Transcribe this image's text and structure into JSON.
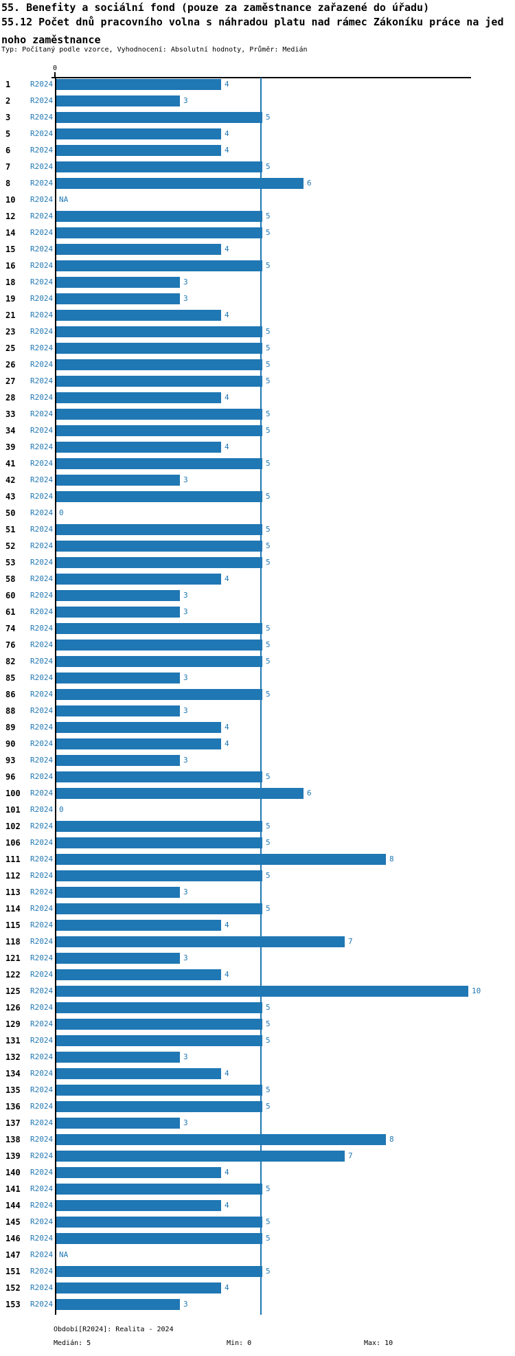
{
  "header": {
    "title_line1": "55. Benefity a sociální fond (pouze za zaměstnance zařazené do úřadu)",
    "title_line2": "55.12 Počet dnů pracovního volna s náhradou platu nad rámec Zákoníku práce na jed",
    "title_line3": "noho zaměstnance",
    "meta": "Typ: Počítaný podle vzorce, Vyhodnocení: Absolutní hodnoty, Průměr: Medián"
  },
  "chart_data": {
    "type": "bar",
    "orientation": "horizontal",
    "series_label": "R2024",
    "title": "55.12 Počet dnů pracovního volna s náhradou platu nad rámec Zákoníku práce na jednoho zaměstnance",
    "xlabel": "",
    "ylabel": "",
    "x_axis": {
      "tick_labels": [
        "0"
      ],
      "min": 0,
      "max": 10
    },
    "median_line_value": 5,
    "bar_color": "#1f77b4",
    "text_color": "#1f77b4",
    "grid": false,
    "rows": [
      {
        "category": "1",
        "value": 4,
        "label": "4"
      },
      {
        "category": "2",
        "value": 3,
        "label": "3"
      },
      {
        "category": "3",
        "value": 5,
        "label": "5"
      },
      {
        "category": "5",
        "value": 4,
        "label": "4"
      },
      {
        "category": "6",
        "value": 4,
        "label": "4"
      },
      {
        "category": "7",
        "value": 5,
        "label": "5"
      },
      {
        "category": "8",
        "value": 6,
        "label": "6"
      },
      {
        "category": "10",
        "value": null,
        "label": "NA"
      },
      {
        "category": "12",
        "value": 5,
        "label": "5"
      },
      {
        "category": "14",
        "value": 5,
        "label": "5"
      },
      {
        "category": "15",
        "value": 4,
        "label": "4"
      },
      {
        "category": "16",
        "value": 5,
        "label": "5"
      },
      {
        "category": "18",
        "value": 3,
        "label": "3"
      },
      {
        "category": "19",
        "value": 3,
        "label": "3"
      },
      {
        "category": "21",
        "value": 4,
        "label": "4"
      },
      {
        "category": "23",
        "value": 5,
        "label": "5"
      },
      {
        "category": "25",
        "value": 5,
        "label": "5"
      },
      {
        "category": "26",
        "value": 5,
        "label": "5"
      },
      {
        "category": "27",
        "value": 5,
        "label": "5"
      },
      {
        "category": "28",
        "value": 4,
        "label": "4"
      },
      {
        "category": "33",
        "value": 5,
        "label": "5"
      },
      {
        "category": "34",
        "value": 5,
        "label": "5"
      },
      {
        "category": "39",
        "value": 4,
        "label": "4"
      },
      {
        "category": "41",
        "value": 5,
        "label": "5"
      },
      {
        "category": "42",
        "value": 3,
        "label": "3"
      },
      {
        "category": "43",
        "value": 5,
        "label": "5"
      },
      {
        "category": "50",
        "value": 0,
        "label": "0"
      },
      {
        "category": "51",
        "value": 5,
        "label": "5"
      },
      {
        "category": "52",
        "value": 5,
        "label": "5"
      },
      {
        "category": "53",
        "value": 5,
        "label": "5"
      },
      {
        "category": "58",
        "value": 4,
        "label": "4"
      },
      {
        "category": "60",
        "value": 3,
        "label": "3"
      },
      {
        "category": "61",
        "value": 3,
        "label": "3"
      },
      {
        "category": "74",
        "value": 5,
        "label": "5"
      },
      {
        "category": "76",
        "value": 5,
        "label": "5"
      },
      {
        "category": "82",
        "value": 5,
        "label": "5"
      },
      {
        "category": "85",
        "value": 3,
        "label": "3"
      },
      {
        "category": "86",
        "value": 5,
        "label": "5"
      },
      {
        "category": "88",
        "value": 3,
        "label": "3"
      },
      {
        "category": "89",
        "value": 4,
        "label": "4"
      },
      {
        "category": "90",
        "value": 4,
        "label": "4"
      },
      {
        "category": "93",
        "value": 3,
        "label": "3"
      },
      {
        "category": "96",
        "value": 5,
        "label": "5"
      },
      {
        "category": "100",
        "value": 6,
        "label": "6"
      },
      {
        "category": "101",
        "value": 0,
        "label": "0"
      },
      {
        "category": "102",
        "value": 5,
        "label": "5"
      },
      {
        "category": "106",
        "value": 5,
        "label": "5"
      },
      {
        "category": "111",
        "value": 8,
        "label": "8"
      },
      {
        "category": "112",
        "value": 5,
        "label": "5"
      },
      {
        "category": "113",
        "value": 3,
        "label": "3"
      },
      {
        "category": "114",
        "value": 5,
        "label": "5"
      },
      {
        "category": "115",
        "value": 4,
        "label": "4"
      },
      {
        "category": "118",
        "value": 7,
        "label": "7"
      },
      {
        "category": "121",
        "value": 3,
        "label": "3"
      },
      {
        "category": "122",
        "value": 4,
        "label": "4"
      },
      {
        "category": "125",
        "value": 10,
        "label": "10"
      },
      {
        "category": "126",
        "value": 5,
        "label": "5"
      },
      {
        "category": "129",
        "value": 5,
        "label": "5"
      },
      {
        "category": "131",
        "value": 5,
        "label": "5"
      },
      {
        "category": "132",
        "value": 3,
        "label": "3"
      },
      {
        "category": "134",
        "value": 4,
        "label": "4"
      },
      {
        "category": "135",
        "value": 5,
        "label": "5"
      },
      {
        "category": "136",
        "value": 5,
        "label": "5"
      },
      {
        "category": "137",
        "value": 3,
        "label": "3"
      },
      {
        "category": "138",
        "value": 8,
        "label": "8"
      },
      {
        "category": "139",
        "value": 7,
        "label": "7"
      },
      {
        "category": "140",
        "value": 4,
        "label": "4"
      },
      {
        "category": "141",
        "value": 5,
        "label": "5"
      },
      {
        "category": "144",
        "value": 4,
        "label": "4"
      },
      {
        "category": "145",
        "value": 5,
        "label": "5"
      },
      {
        "category": "146",
        "value": 5,
        "label": "5"
      },
      {
        "category": "147",
        "value": null,
        "label": "NA"
      },
      {
        "category": "151",
        "value": 5,
        "label": "5"
      },
      {
        "category": "152",
        "value": 4,
        "label": "4"
      },
      {
        "category": "153",
        "value": 3,
        "label": "3"
      }
    ]
  },
  "footer": {
    "period": "Období[R2024]: Realita - 2024",
    "median": "Medián: 5",
    "min": "Min: 0",
    "max": "Max: 10"
  }
}
